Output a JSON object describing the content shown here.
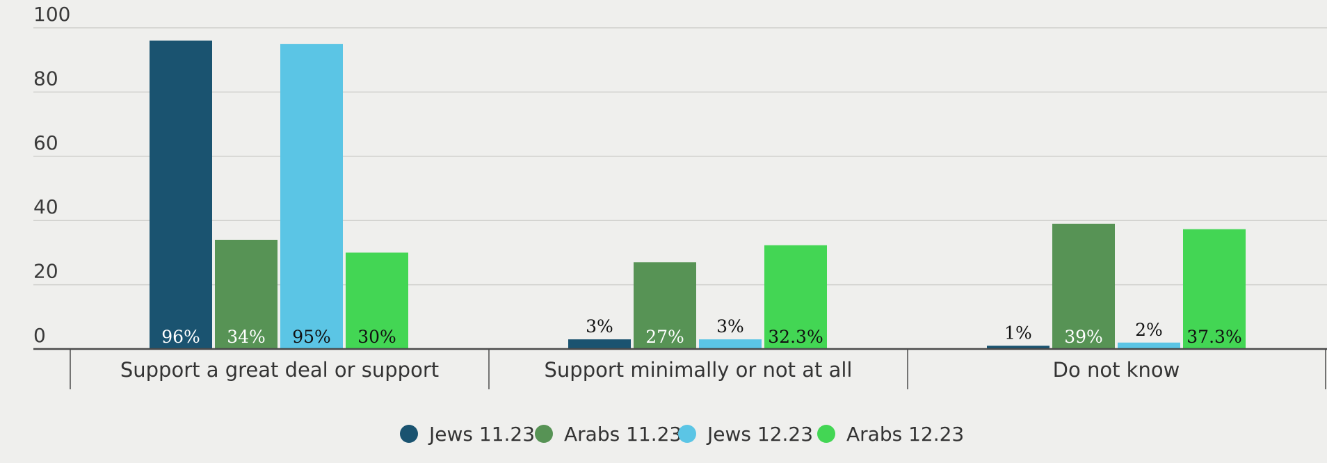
{
  "colors": {
    "grid": "#cfcfcc",
    "axis": "#4a4a4a",
    "background": "#efefed",
    "label_light": "#ffffff",
    "label_dark": "#111111"
  },
  "chart_data": {
    "type": "bar",
    "title": "",
    "xlabel": "",
    "ylabel": "",
    "ylim": [
      0,
      100
    ],
    "yticks": [
      0,
      20,
      40,
      60,
      80,
      100
    ],
    "grid": true,
    "legend_position": "bottom-center",
    "categories": [
      "Support a great deal or support",
      "Support minimally or not at all",
      "Do not know"
    ],
    "series": [
      {
        "name": "Jews 11.23",
        "color": "#1a5370",
        "values": [
          96,
          3,
          1
        ],
        "labels": [
          "96%",
          "3%",
          "1%"
        ]
      },
      {
        "name": "Arabs 11.23",
        "color": "#579355",
        "values": [
          34,
          27,
          39
        ],
        "labels": [
          "34%",
          "27%",
          "39%"
        ]
      },
      {
        "name": "Jews 12.23",
        "color": "#5bc5e5",
        "values": [
          95,
          3,
          2
        ],
        "labels": [
          "95%",
          "3%",
          "2%"
        ]
      },
      {
        "name": "Arabs 12.23",
        "color": "#43d654",
        "values": [
          30,
          32.3,
          37.3
        ],
        "labels": [
          "30%",
          "32.3%",
          "37.3%"
        ]
      }
    ]
  }
}
